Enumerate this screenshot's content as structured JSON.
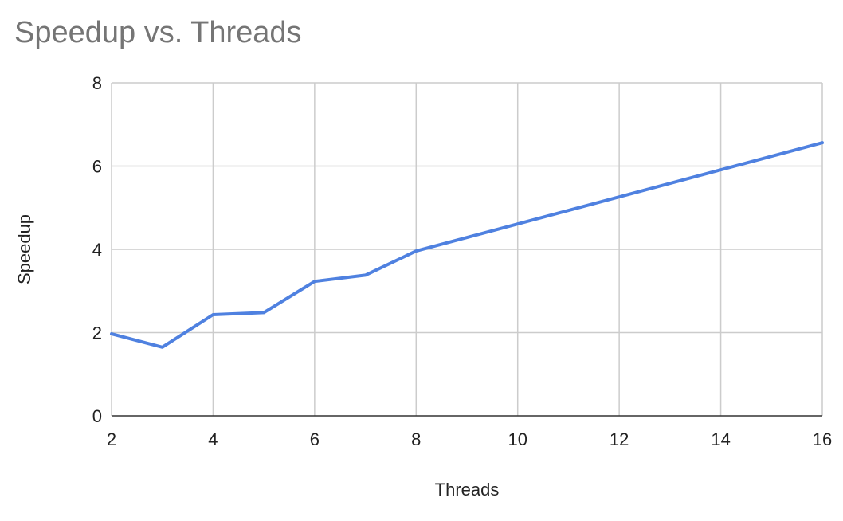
{
  "chart_data": {
    "type": "line",
    "title": "Speedup vs. Threads",
    "xlabel": "Threads",
    "ylabel": "Speedup",
    "xlim": [
      2,
      16
    ],
    "ylim": [
      0,
      8
    ],
    "xticks": [
      2,
      4,
      6,
      8,
      10,
      12,
      14,
      16
    ],
    "yticks": [
      0,
      2,
      4,
      6,
      8
    ],
    "grid": true,
    "series": [
      {
        "color": "#4f81e0",
        "x": [
          2,
          3,
          4,
          5,
          6,
          7,
          8,
          16
        ],
        "y": [
          1.97,
          1.65,
          2.43,
          2.48,
          3.23,
          3.38,
          3.96,
          6.56
        ]
      }
    ]
  }
}
